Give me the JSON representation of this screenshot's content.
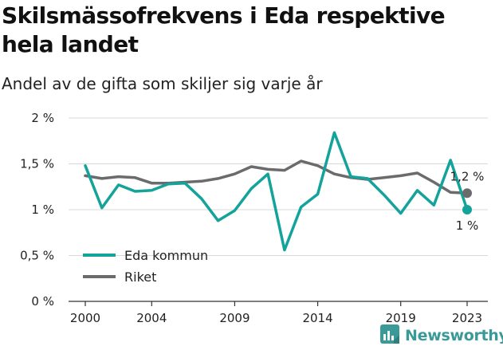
{
  "title": "Skilsmässofrekvens i Eda respektive hela landet",
  "subtitle": "Andel av de gifta som skiljer sig varje år",
  "brand": {
    "name": "Newsworthy",
    "icon": "newsworthy-logo-icon"
  },
  "colors": {
    "eda": "#14a39b",
    "riket": "#6b6b6e",
    "grid": "#d9d9d9",
    "axis": "#333333",
    "brand": "#3a9a98"
  },
  "chart_data": {
    "type": "line",
    "title": "Skilsmässofrekvens i Eda respektive hela landet",
    "subtitle": "Andel av de gifta som skiljer sig varje år",
    "xlabel": "",
    "ylabel": "",
    "x": [
      2000,
      2001,
      2002,
      2003,
      2004,
      2005,
      2006,
      2007,
      2008,
      2009,
      2010,
      2011,
      2012,
      2013,
      2014,
      2015,
      2016,
      2017,
      2018,
      2019,
      2020,
      2021,
      2022,
      2023
    ],
    "x_ticks": [
      "2000",
      "2004",
      "2009",
      "2014",
      "2019",
      "2023"
    ],
    "x_tick_values": [
      2000,
      2004,
      2009,
      2014,
      2019,
      2023
    ],
    "y_ticks": [
      "0 %",
      "0,5 %",
      "1 %",
      "1,5 %",
      "2 %"
    ],
    "y_tick_values": [
      0,
      0.5,
      1,
      1.5,
      2
    ],
    "xlim": [
      2000,
      2023
    ],
    "ylim": [
      0,
      2
    ],
    "grid": "horizontal",
    "legend_position": "bottom-left",
    "series": [
      {
        "name": "Eda kommun",
        "color": "#14a39b",
        "values": [
          1.48,
          1.02,
          1.27,
          1.2,
          1.21,
          1.28,
          1.29,
          1.12,
          0.88,
          0.99,
          1.23,
          1.39,
          0.56,
          1.03,
          1.17,
          1.84,
          1.36,
          1.34,
          1.16,
          0.96,
          1.21,
          1.05,
          1.54,
          1.0
        ],
        "end_label": "1 %"
      },
      {
        "name": "Riket",
        "color": "#6b6b6e",
        "values": [
          1.37,
          1.34,
          1.36,
          1.35,
          1.29,
          1.29,
          1.3,
          1.31,
          1.34,
          1.39,
          1.47,
          1.44,
          1.43,
          1.53,
          1.48,
          1.39,
          1.35,
          1.33,
          1.35,
          1.37,
          1.4,
          1.3,
          1.19,
          1.18
        ],
        "end_label": "1,2 %"
      }
    ]
  }
}
